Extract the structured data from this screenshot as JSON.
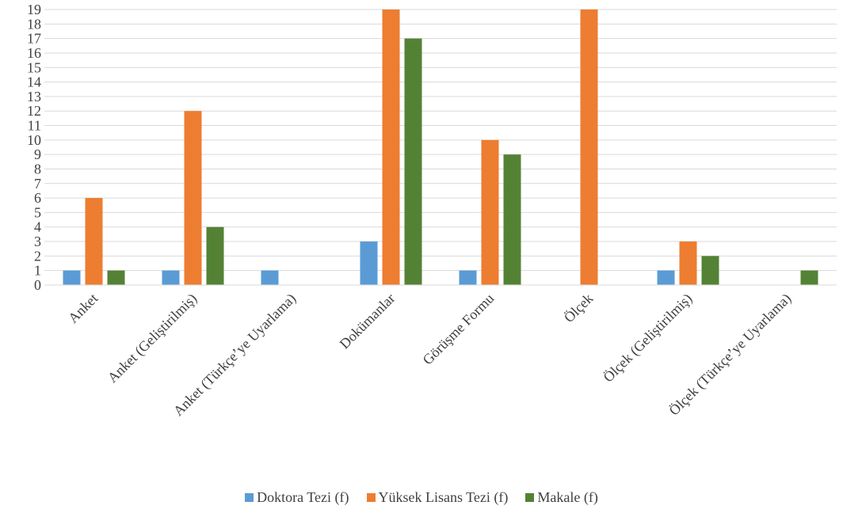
{
  "chart_data": {
    "type": "bar",
    "title": "",
    "xlabel": "",
    "ylabel": "",
    "ylim": [
      0,
      19
    ],
    "yticks": [
      0,
      1,
      2,
      3,
      4,
      5,
      6,
      7,
      8,
      9,
      10,
      11,
      12,
      13,
      14,
      15,
      16,
      17,
      18,
      19
    ],
    "grid": true,
    "legend_position": "bottom",
    "categories": [
      "Anket",
      "Anket (Geliştirilmiş)",
      "Anket (Türkçe’ye Uyarlama)",
      "Dokümanlar",
      "Görüşme Formu",
      "Ölçek",
      "Ölçek (Geliştirilmiş)",
      "Ölçek (Türkçe’ye Uyarlama)"
    ],
    "series": [
      {
        "name": "Doktora Tezi (f)",
        "color": "#5b9bd5",
        "values": [
          1,
          1,
          1,
          3,
          1,
          0,
          1,
          0
        ]
      },
      {
        "name": "Yüksek Lisans Tezi (f)",
        "color": "#ed7d31",
        "values": [
          6,
          12,
          0,
          19,
          10,
          19,
          3,
          0
        ]
      },
      {
        "name": "Makale (f)",
        "color": "#548235",
        "values": [
          1,
          4,
          0,
          17,
          9,
          0,
          2,
          1
        ]
      }
    ]
  }
}
